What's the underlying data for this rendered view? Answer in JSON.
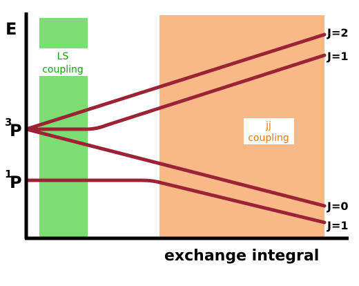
{
  "axis": {
    "y_label": "E",
    "x_label": "exchange integral"
  },
  "levels": [
    {
      "superscript": "3",
      "label": "P"
    },
    {
      "superscript": "1",
      "label": "P"
    }
  ],
  "regions": [
    {
      "label_lines": [
        "LS",
        "coupling"
      ]
    },
    {
      "label_lines": [
        "jj",
        "coupling"
      ]
    }
  ],
  "states": [
    "J=2",
    "J=1",
    "J=0",
    "J=1"
  ]
}
